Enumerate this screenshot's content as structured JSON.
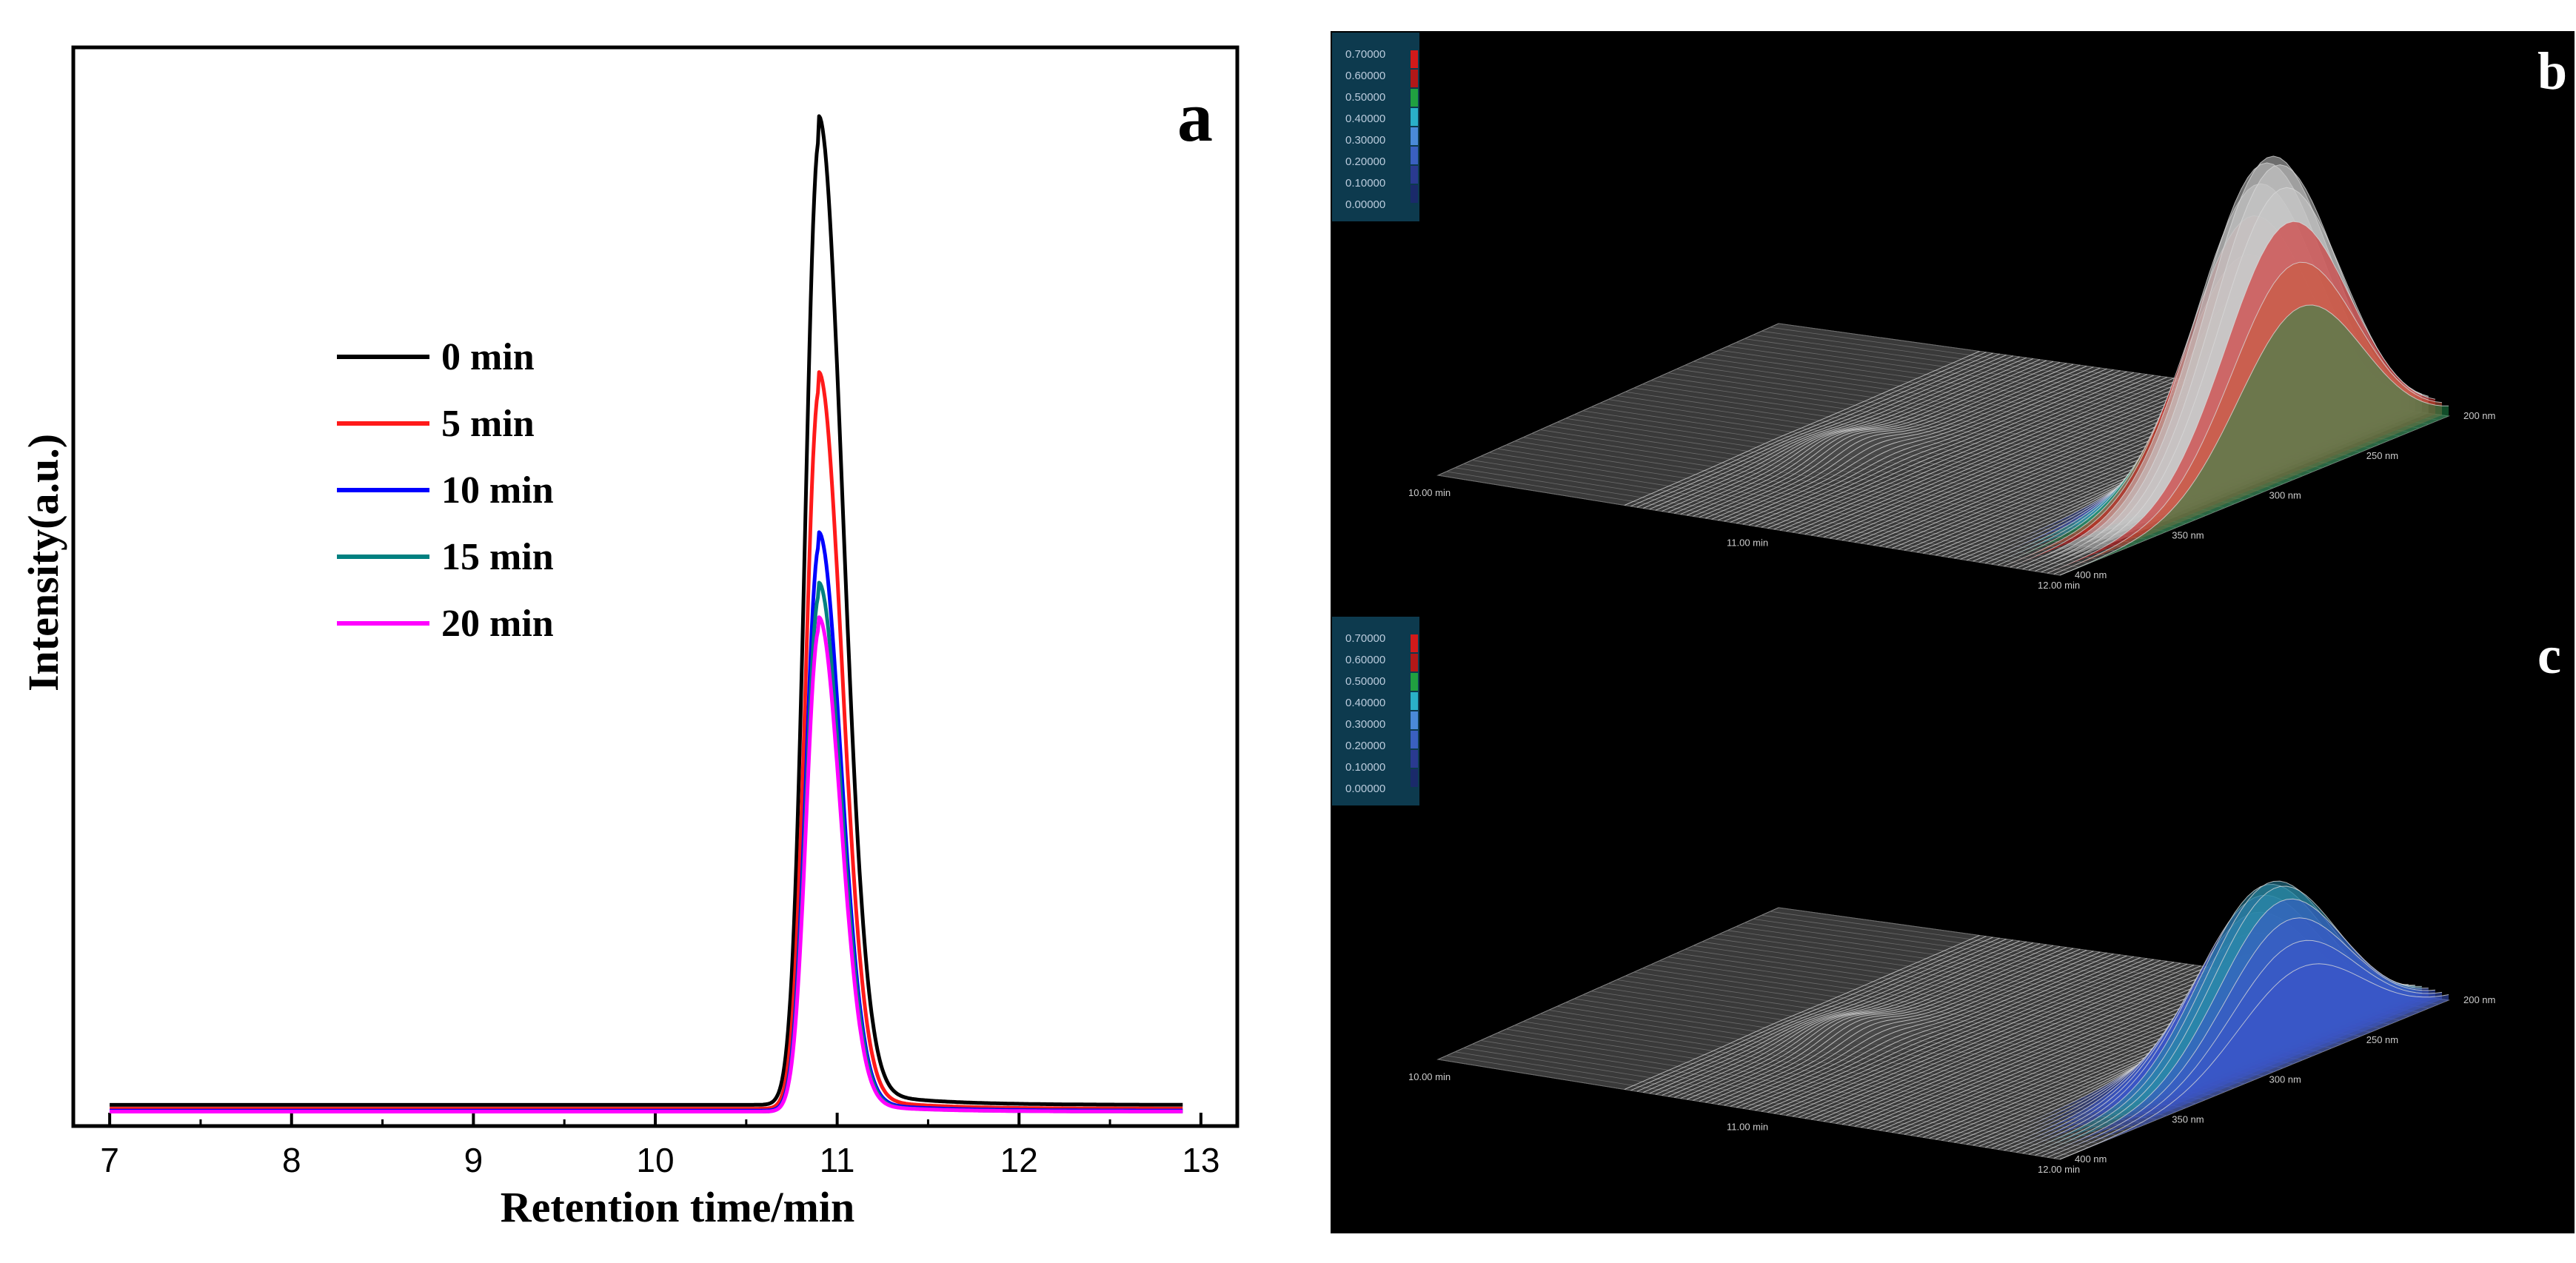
{
  "chart_data": [
    {
      "type": "line",
      "panel_label": "a",
      "xlabel": "Retention time/min",
      "ylabel": "Intensity(a.u.)",
      "xlim": [
        6.8,
        13.2
      ],
      "ylim": [
        0,
        1.0
      ],
      "xticks": [
        7,
        8,
        9,
        10,
        11,
        12,
        13
      ],
      "x_start": 7.0,
      "x_end": 12.9,
      "peak_center": 10.9,
      "series": [
        {
          "name": "0 min",
          "color": "#000000",
          "baseline": 0.012,
          "peak": 1.0,
          "sigma_left": 0.075,
          "sigma_right": 0.13
        },
        {
          "name": "5 min",
          "color": "#ff1a1a",
          "baseline": 0.008,
          "peak": 0.745,
          "sigma_left": 0.072,
          "sigma_right": 0.125
        },
        {
          "name": "10 min",
          "color": "#0000ff",
          "baseline": 0.006,
          "peak": 0.585,
          "sigma_left": 0.07,
          "sigma_right": 0.12
        },
        {
          "name": "15 min",
          "color": "#008080",
          "baseline": 0.005,
          "peak": 0.535,
          "sigma_left": 0.07,
          "sigma_right": 0.12
        },
        {
          "name": "20 min",
          "color": "#ff00ff",
          "baseline": 0.005,
          "peak": 0.5,
          "sigma_left": 0.07,
          "sigma_right": 0.118
        }
      ],
      "legend_position": "upper-left"
    },
    {
      "type": "surface-3d",
      "panel_label": "b",
      "scale_labels": [
        "0.70000",
        "0.60000",
        "0.50000",
        "0.40000",
        "0.30000",
        "0.20000",
        "0.10000",
        "0.00000"
      ],
      "time_axis_labels": [
        "10.00 min",
        "11.00 min",
        "12.00 min"
      ],
      "wavelength_axis_labels": [
        "200 nm",
        "250 nm",
        "300 nm",
        "350 nm",
        "400 nm"
      ],
      "peak_relative_height": 1.0,
      "peak_colors": [
        "#2a3a8a",
        "#3a56c8",
        "#2aa0b0",
        "#1f8a4a",
        "#c85a3c",
        "#d21a1a",
        "#c8c8c8"
      ]
    },
    {
      "type": "surface-3d",
      "panel_label": "c",
      "scale_labels": [
        "0.70000",
        "0.60000",
        "0.50000",
        "0.40000",
        "0.30000",
        "0.20000",
        "0.10000",
        "0.00000"
      ],
      "time_axis_labels": [
        "10.00 min",
        "11.00 min",
        "12.00 min"
      ],
      "wavelength_axis_labels": [
        "200 nm",
        "250 nm",
        "300 nm",
        "350 nm",
        "400 nm"
      ],
      "peak_relative_height": 0.55,
      "peak_colors": [
        "#2a3a8a",
        "#3a56c8",
        "#2a8aa8",
        "#1f9a7a"
      ]
    }
  ],
  "colors": {
    "scale_panel_bg": "#0d3a4e",
    "swatches": [
      "#d21a1a",
      "#b21818",
      "#20a040",
      "#2ab0c8",
      "#4a8ad8",
      "#3a60c0",
      "#2a3a90",
      "#1a2a6a"
    ]
  }
}
